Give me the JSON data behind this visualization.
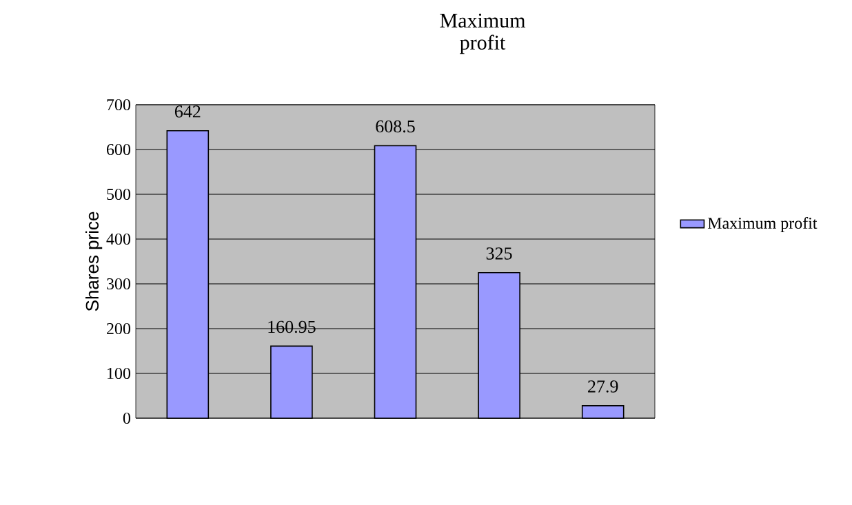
{
  "chart_data": {
    "type": "bar",
    "title": "Maximum profit",
    "ylabel": "Shares price",
    "categories": [
      null,
      null,
      null,
      null,
      null
    ],
    "series": [
      {
        "name": "Maximum profit",
        "color": "#9999ff",
        "values": [
          642,
          160.95,
          608.5,
          325,
          27.9
        ]
      }
    ],
    "ylim": [
      0,
      700
    ],
    "yticks": [
      0,
      100,
      200,
      300,
      400,
      500,
      600,
      700
    ],
    "grid": "y",
    "legend": "right",
    "data_labels": true
  }
}
